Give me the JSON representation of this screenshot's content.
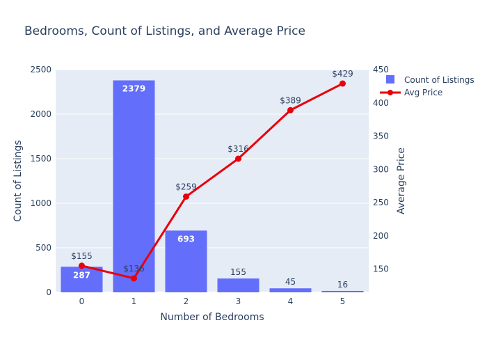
{
  "chart_data": {
    "type": "bar",
    "title": "Bedrooms, Count of Listings, and Average Price",
    "xlabel": "Number of Bedrooms",
    "ylabel": "Count of Listings",
    "y2label": "Average Price",
    "categories": [
      "0",
      "1",
      "2",
      "3",
      "4",
      "5"
    ],
    "ylim": [
      0,
      2500
    ],
    "y2lim": [
      115,
      450
    ],
    "yticks": [
      "0",
      "500",
      "1000",
      "1500",
      "2000",
      "2500"
    ],
    "y2ticks": [
      "150",
      "200",
      "250",
      "300",
      "350",
      "400",
      "450"
    ],
    "grid": true,
    "legend_position": "top-right",
    "series": [
      {
        "name": "Count of Listings",
        "type": "bar",
        "axis": "left",
        "color": "#636efa",
        "values": [
          287,
          2379,
          693,
          155,
          45,
          16
        ],
        "labels": [
          "287",
          "2379",
          "693",
          "155",
          "45",
          "16"
        ]
      },
      {
        "name": "Avg Price",
        "type": "line",
        "axis": "right",
        "color": "#e8000b",
        "values": [
          155,
          136,
          259,
          316,
          389,
          429
        ],
        "labels": [
          "$155",
          "$136",
          "$259",
          "$316",
          "$389",
          "$429"
        ]
      }
    ]
  }
}
